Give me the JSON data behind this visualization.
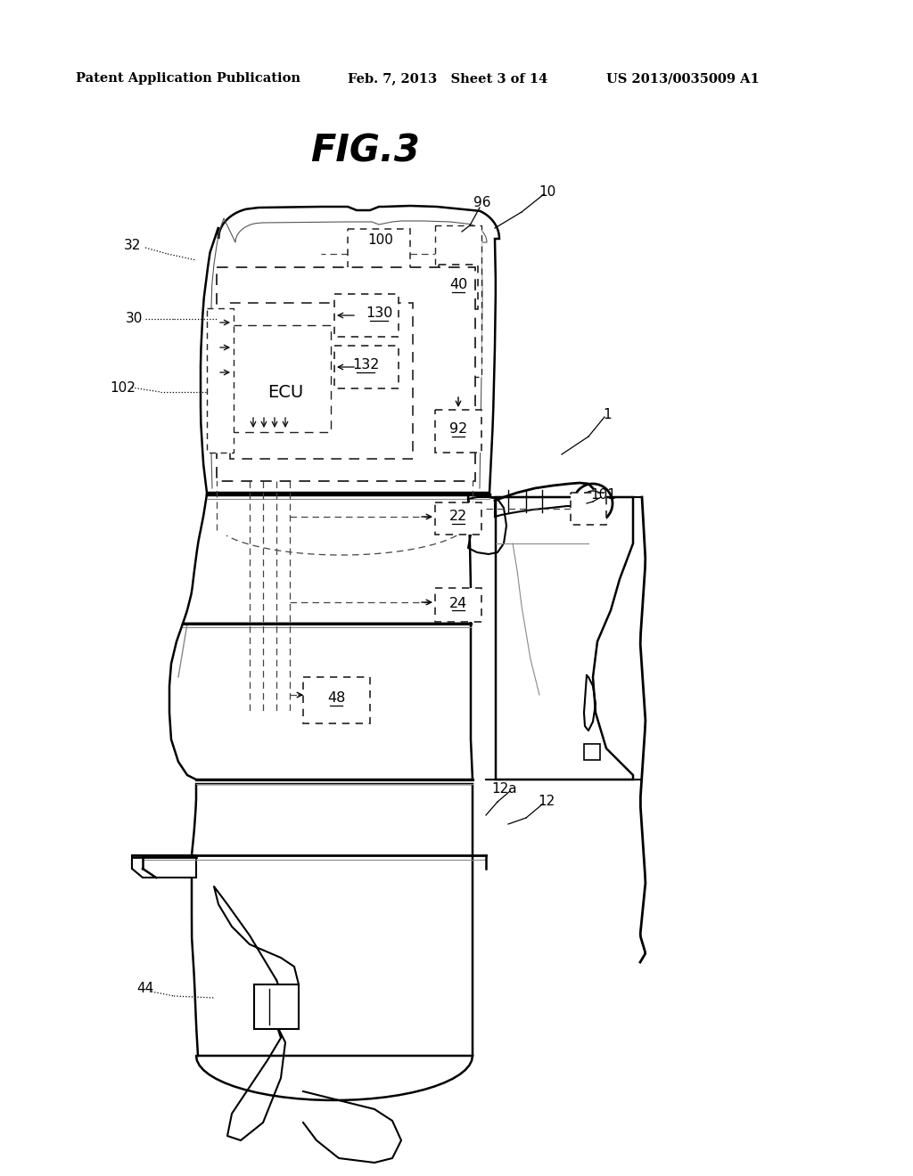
{
  "title": "FIG.3",
  "header_left": "Patent Application Publication",
  "header_mid": "Feb. 7, 2013   Sheet 3 of 14",
  "header_right": "US 2013/0035009 A1",
  "bg_color": "#ffffff",
  "line_color": "#000000",
  "dashed_color": "#444444"
}
